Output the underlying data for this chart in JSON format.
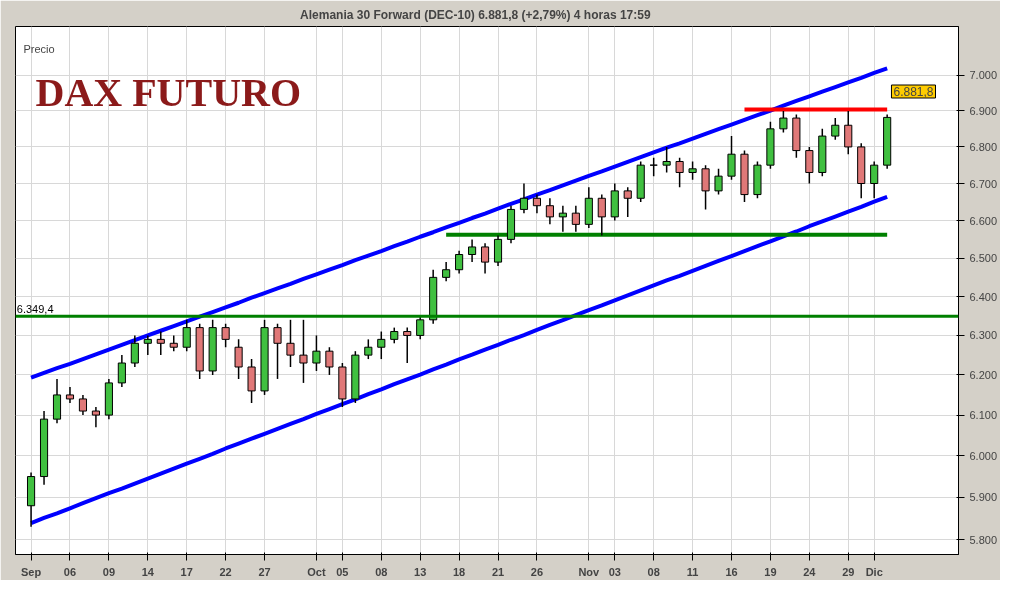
{
  "chart_data": {
    "type": "candlestick",
    "title": "Alemania 30 Forward (DEC-10)    6.881,8 (+2,79%)    4 horas  17:59",
    "ylabel": "Precio",
    "annotations": [
      "DAX FUTURO",
      "6.881,8"
    ],
    "categories": [
      "Sep",
      null,
      null,
      "06",
      null,
      null,
      "09",
      null,
      null,
      "14",
      null,
      null,
      "17",
      null,
      null,
      "22",
      null,
      null,
      "27",
      null,
      null,
      null,
      "Oct",
      null,
      "05",
      null,
      null,
      "08",
      null,
      null,
      "13",
      null,
      null,
      "18",
      null,
      null,
      "21",
      null,
      null,
      "26",
      null,
      null,
      null,
      "Nov",
      null,
      "03",
      null,
      null,
      "08",
      null,
      null,
      "11",
      null,
      null,
      "16",
      null,
      null,
      "19",
      null,
      null,
      "24",
      null,
      null,
      "29",
      null,
      "Dic",
      null
    ],
    "ohlc": [
      [
        5880,
        5960,
        5830,
        5950
      ],
      [
        5950,
        6110,
        5930,
        6090
      ],
      [
        6090,
        6190,
        6080,
        6150
      ],
      [
        6150,
        6170,
        6130,
        6140
      ],
      [
        6140,
        6150,
        6100,
        6110
      ],
      [
        6110,
        6120,
        6070,
        6100
      ],
      [
        6100,
        6190,
        6090,
        6180
      ],
      [
        6180,
        6250,
        6170,
        6230
      ],
      [
        6230,
        6300,
        6220,
        6280
      ],
      [
        6280,
        6300,
        6250,
        6290
      ],
      [
        6290,
        6310,
        6250,
        6280
      ],
      [
        6280,
        6300,
        6260,
        6270
      ],
      [
        6270,
        6340,
        6260,
        6320
      ],
      [
        6320,
        6330,
        6190,
        6210
      ],
      [
        6210,
        6340,
        6200,
        6320
      ],
      [
        6320,
        6330,
        6270,
        6290
      ],
      [
        6270,
        6290,
        6190,
        6220
      ],
      [
        6220,
        6240,
        6130,
        6160
      ],
      [
        6160,
        6340,
        6150,
        6320
      ],
      [
        6320,
        6330,
        6190,
        6280
      ],
      [
        6280,
        6340,
        6220,
        6250
      ],
      [
        6250,
        6340,
        6180,
        6230
      ],
      [
        6230,
        6300,
        6210,
        6260
      ],
      [
        6260,
        6270,
        6200,
        6220
      ],
      [
        6220,
        6230,
        6120,
        6140
      ],
      [
        6140,
        6260,
        6130,
        6250
      ],
      [
        6250,
        6290,
        6240,
        6270
      ],
      [
        6270,
        6310,
        6240,
        6290
      ],
      [
        6290,
        6320,
        6280,
        6310
      ],
      [
        6310,
        6320,
        6230,
        6300
      ],
      [
        6300,
        6350,
        6290,
        6340
      ],
      [
        6340,
        6470,
        6330,
        6450
      ],
      [
        6450,
        6490,
        6440,
        6470
      ],
      [
        6470,
        6520,
        6460,
        6510
      ],
      [
        6510,
        6550,
        6490,
        6530
      ],
      [
        6530,
        6540,
        6460,
        6490
      ],
      [
        6490,
        6560,
        6480,
        6550
      ],
      [
        6550,
        6640,
        6540,
        6630
      ],
      [
        6630,
        6700,
        6620,
        6660
      ],
      [
        6660,
        6670,
        6620,
        6640
      ],
      [
        6640,
        6660,
        6590,
        6610
      ],
      [
        6610,
        6640,
        6570,
        6620
      ],
      [
        6620,
        6640,
        6570,
        6590
      ],
      [
        6590,
        6690,
        6580,
        6660
      ],
      [
        6660,
        6670,
        6560,
        6610
      ],
      [
        6610,
        6700,
        6600,
        6680
      ],
      [
        6680,
        6690,
        6610,
        6660
      ],
      [
        6660,
        6760,
        6650,
        6750
      ],
      [
        6750,
        6770,
        6720,
        6750
      ],
      [
        6750,
        6800,
        6730,
        6760
      ],
      [
        6760,
        6770,
        6690,
        6730
      ],
      [
        6730,
        6760,
        6710,
        6740
      ],
      [
        6740,
        6750,
        6630,
        6680
      ],
      [
        6680,
        6740,
        6670,
        6720
      ],
      [
        6720,
        6830,
        6710,
        6780
      ],
      [
        6780,
        6790,
        6650,
        6670
      ],
      [
        6670,
        6760,
        6660,
        6750
      ],
      [
        6750,
        6870,
        6740,
        6850
      ],
      [
        6850,
        6900,
        6840,
        6880
      ],
      [
        6880,
        6890,
        6770,
        6790
      ],
      [
        6790,
        6800,
        6700,
        6730
      ],
      [
        6730,
        6850,
        6720,
        6830
      ],
      [
        6830,
        6880,
        6820,
        6860
      ],
      [
        6860,
        6900,
        6780,
        6800
      ],
      [
        6800,
        6810,
        6660,
        6700
      ],
      [
        6700,
        6760,
        6660,
        6750
      ],
      [
        6750,
        6890,
        6740,
        6881.8
      ]
    ],
    "series": [
      {
        "type": "line",
        "color": "#0000ff",
        "values": [
          6193,
          6205,
          6217,
          6228,
          6240,
          6252,
          6264,
          6276,
          6288,
          6300,
          6312,
          6324,
          6336,
          6348,
          6360,
          6372,
          6384,
          6397,
          6409,
          6421,
          6433,
          6446,
          6458,
          6470,
          6482,
          6495,
          6507,
          6519,
          6532,
          6544,
          6557,
          6569,
          6582,
          6594,
          6607,
          6619,
          6632,
          6645,
          6657,
          6670,
          6682,
          6695,
          6708,
          6721,
          6733,
          6746,
          6759,
          6772,
          6785,
          6798,
          6810,
          6823,
          6836,
          6849,
          6862,
          6875,
          6888,
          6901,
          6915,
          6928,
          6941,
          6954,
          6967,
          6980,
          6993,
          7007,
          7020
        ]
      },
      {
        "type": "line",
        "color": "#0000ff",
        "values": [
          5839,
          5851,
          5862,
          5874,
          5886,
          5898,
          5910,
          5921,
          5933,
          5945,
          5957,
          5969,
          5981,
          5993,
          6005,
          6018,
          6030,
          6042,
          6054,
          6066,
          6078,
          6090,
          6103,
          6115,
          6127,
          6139,
          6152,
          6164,
          6177,
          6189,
          6201,
          6214,
          6226,
          6239,
          6251,
          6264,
          6276,
          6289,
          6301,
          6314,
          6327,
          6339,
          6352,
          6365,
          6377,
          6390,
          6403,
          6416,
          6429,
          6442,
          6454,
          6467,
          6480,
          6493,
          6506,
          6519,
          6532,
          6545,
          6558,
          6571,
          6585,
          6598,
          6611,
          6624,
          6637,
          6651,
          6664
        ]
      },
      {
        "type": "line",
        "color": "#008000",
        "values": [
          null,
          null,
          null,
          null,
          null,
          null,
          null,
          null,
          null,
          null,
          null,
          null,
          null,
          null,
          null,
          null,
          null,
          null,
          null,
          null,
          null,
          null,
          null,
          null,
          null,
          null,
          null,
          null,
          null,
          null,
          null,
          null,
          6562,
          6562,
          6562,
          6562,
          6562,
          6562,
          6562,
          6562,
          6562,
          6562,
          6562,
          6562,
          6562,
          6562,
          6562,
          6562,
          6562,
          6562,
          6562,
          6562,
          6562,
          6562,
          6562,
          6562,
          6562,
          6562,
          6562,
          6562,
          6562,
          6562,
          6562,
          6562,
          6562,
          6562,
          6562
        ]
      },
      {
        "type": "line",
        "color": "#ff0000",
        "values": [
          null,
          null,
          null,
          null,
          null,
          null,
          null,
          null,
          null,
          null,
          null,
          null,
          null,
          null,
          null,
          null,
          null,
          null,
          null,
          null,
          null,
          null,
          null,
          null,
          null,
          null,
          null,
          null,
          null,
          null,
          null,
          null,
          null,
          null,
          null,
          null,
          null,
          null,
          null,
          null,
          null,
          null,
          null,
          null,
          null,
          null,
          null,
          null,
          null,
          null,
          null,
          null,
          null,
          null,
          null,
          6904,
          6904,
          6904,
          6904,
          6904,
          6904,
          6904,
          6904,
          6904,
          6904,
          6904,
          6904
        ]
      }
    ],
    "ref_lines": [
      {
        "axis": "y",
        "value": 6349.4,
        "label": "6.349,4",
        "color": "#008000"
      }
    ],
    "log": "y",
    "ylim": [
      5765,
      7140
    ],
    "yticks": [
      {
        "value": 5800,
        "label": "5.800"
      },
      {
        "value": 5900,
        "label": "5.900"
      },
      {
        "value": 6000,
        "label": "6.000"
      },
      {
        "value": 6100,
        "label": "6.100"
      },
      {
        "value": 6200,
        "label": "6.200"
      },
      {
        "value": 6300,
        "label": "6.300"
      },
      {
        "value": 6400,
        "label": "6.400"
      },
      {
        "value": 6500,
        "label": "6.500"
      },
      {
        "value": 6600,
        "label": "6.600"
      },
      {
        "value": 6700,
        "label": "6.700"
      },
      {
        "value": 6800,
        "label": "6.800"
      },
      {
        "value": 6900,
        "label": "6.900"
      },
      {
        "value": 7000,
        "label": "7.000"
      }
    ],
    "grid": true
  }
}
